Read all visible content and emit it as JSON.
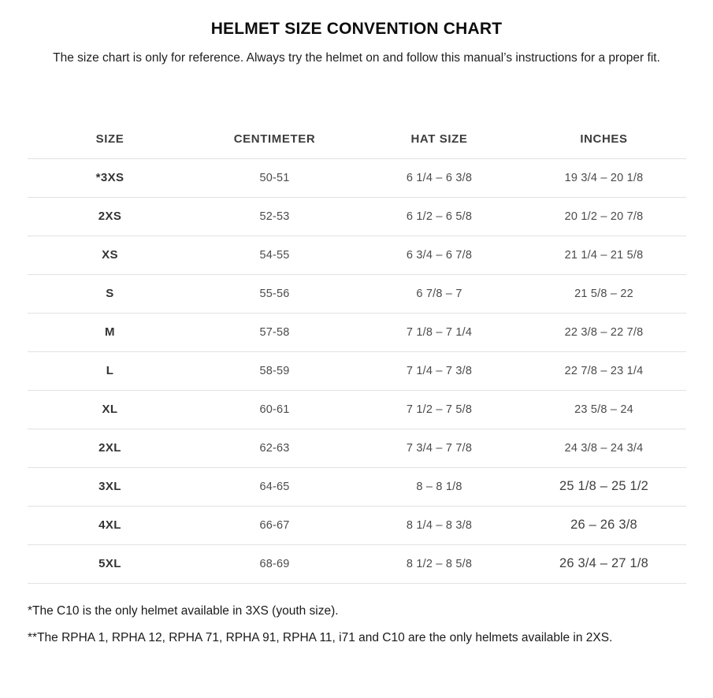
{
  "page": {
    "title": "HELMET SIZE CONVENTION CHART",
    "subtitle": "The size chart is only for reference. Always try the helmet on and follow this manual’s instructions for a proper fit.",
    "footnote_1": "*The C10 is the only helmet available in 3XS (youth size).",
    "footnote_2": "**The RPHA 1, RPHA 12, RPHA 71, RPHA 91, RPHA 11, i71 and C10 are the only helmets available in 2XS."
  },
  "table": {
    "columns": [
      "SIZE",
      "CENTIMETER",
      "HAT SIZE",
      "INCHES"
    ],
    "rows": [
      {
        "size": "*3XS",
        "centimeter": "50-51",
        "hat_size": "6 1/4 – 6 3/8",
        "inches": "19 3/4 – 20 1/8",
        "inches_large": false
      },
      {
        "size": "2XS",
        "centimeter": "52-53",
        "hat_size": "6 1/2 – 6 5/8",
        "inches": "20 1/2 – 20 7/8",
        "inches_large": false
      },
      {
        "size": "XS",
        "centimeter": "54-55",
        "hat_size": "6 3/4 – 6 7/8",
        "inches": "21 1/4 – 21 5/8",
        "inches_large": false
      },
      {
        "size": "S",
        "centimeter": "55-56",
        "hat_size": "6 7/8 – 7",
        "inches": "21 5/8 – 22",
        "inches_large": false
      },
      {
        "size": "M",
        "centimeter": "57-58",
        "hat_size": "7 1/8 – 7 1/4",
        "inches": "22 3/8 – 22 7/8",
        "inches_large": false
      },
      {
        "size": "L",
        "centimeter": "58-59",
        "hat_size": "7 1/4 – 7 3/8",
        "inches": "22 7/8 – 23 1/4",
        "inches_large": false
      },
      {
        "size": "XL",
        "centimeter": "60-61",
        "hat_size": "7 1/2 – 7 5/8",
        "inches": "23 5/8 – 24",
        "inches_large": false
      },
      {
        "size": "2XL",
        "centimeter": "62-63",
        "hat_size": "7 3/4 – 7 7/8",
        "inches": "24 3/8 – 24 3/4",
        "inches_large": false
      },
      {
        "size": "3XL",
        "centimeter": "64-65",
        "hat_size": "8 – 8 1/8",
        "inches": "25 1/8 – 25 1/2",
        "inches_large": true
      },
      {
        "size": "4XL",
        "centimeter": "66-67",
        "hat_size": "8 1/4 – 8 3/8",
        "inches": "26 – 26 3/8",
        "inches_large": true
      },
      {
        "size": "5XL",
        "centimeter": "68-69",
        "hat_size": "8 1/2 – 8 5/8",
        "inches": "26 3/4 – 27 1/8",
        "inches_large": true
      }
    ]
  },
  "colors": {
    "background": "#ffffff",
    "divider": "#e2e2e2",
    "title_text": "#0d0d0d",
    "header_text": "#3d3d3d",
    "body_text": "#4b4b4b",
    "size_label_text": "#333333"
  }
}
